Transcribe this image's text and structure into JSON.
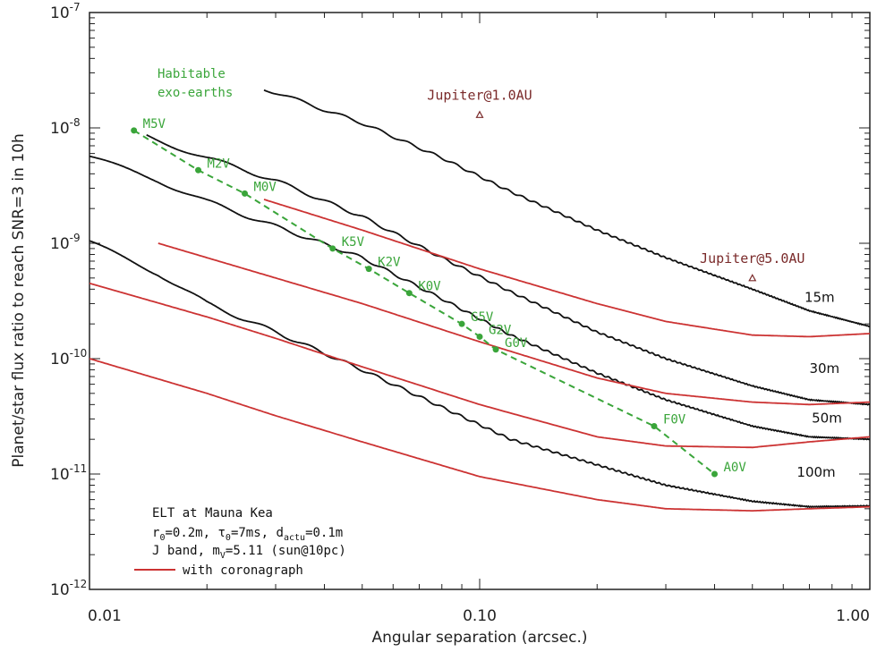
{
  "chart_data": {
    "type": "line",
    "title": "",
    "xlabel": "Angular separation (arcsec.)",
    "ylabel": "Planet/star flux ratio to reach SNR=3 in 10h",
    "xscale": "log",
    "yscale": "log",
    "xlim": [
      0.01,
      1.0
    ],
    "ylim": [
      1e-12,
      1e-07
    ],
    "x_ticks": [
      {
        "value": 0.01,
        "label": "0.01"
      },
      {
        "value": 0.1,
        "label": "0.10"
      },
      {
        "value": 1.0,
        "label": "1.00"
      }
    ],
    "y_ticks": [
      {
        "value": 1e-07,
        "base": "10",
        "exp": "-7"
      },
      {
        "value": 1e-08,
        "base": "10",
        "exp": "-8"
      },
      {
        "value": 1e-09,
        "base": "10",
        "exp": "-9"
      },
      {
        "value": 1e-10,
        "base": "10",
        "exp": "-10"
      },
      {
        "value": 1e-11,
        "base": "10",
        "exp": "-11"
      },
      {
        "value": 1e-12,
        "base": "10",
        "exp": "-12"
      }
    ],
    "series": [
      {
        "name": "15m",
        "kind": "without coronagraph",
        "color": "#111111",
        "x": [
          0.028,
          0.05,
          0.08,
          0.12,
          0.2,
          0.3,
          0.5,
          0.7,
          1.0
        ],
        "y": [
          2.2e-08,
          1.1e-08,
          5.5e-09,
          2.8e-09,
          1.3e-09,
          7.5e-10,
          4e-10,
          2.6e-10,
          1.9e-10
        ]
      },
      {
        "name": "30m",
        "kind": "without coronagraph",
        "color": "#111111",
        "x": [
          0.014,
          0.02,
          0.03,
          0.05,
          0.08,
          0.12,
          0.2,
          0.3,
          0.5,
          0.7,
          1.0
        ],
        "y": [
          8.5e-09,
          5.5e-09,
          3.5e-09,
          1.7e-09,
          7.5e-10,
          3.8e-10,
          1.7e-10,
          1e-10,
          5.8e-11,
          4.4e-11,
          4e-11
        ]
      },
      {
        "name": "50m",
        "kind": "without coronagraph",
        "color": "#111111",
        "x": [
          0.01,
          0.015,
          0.02,
          0.03,
          0.05,
          0.08,
          0.12,
          0.2,
          0.3,
          0.5,
          0.7,
          1.0
        ],
        "y": [
          5.5e-09,
          3.5e-09,
          2.3e-09,
          1.4e-09,
          7.5e-10,
          3.3e-10,
          1.6e-10,
          7.5e-11,
          4.4e-11,
          2.6e-11,
          2.1e-11,
          2e-11
        ]
      },
      {
        "name": "100m",
        "kind": "without coronagraph",
        "color": "#111111",
        "x": [
          0.01,
          0.015,
          0.02,
          0.03,
          0.05,
          0.08,
          0.12,
          0.2,
          0.3,
          0.5,
          0.7,
          1.0
        ],
        "y": [
          1e-09,
          5.5e-10,
          3e-10,
          1.7e-10,
          8e-11,
          3.8e-11,
          2e-11,
          1.2e-11,
          8e-12,
          5.8e-12,
          5.2e-12,
          5.3e-12
        ]
      },
      {
        "name": "15m coronagraph",
        "kind": "with coronagraph",
        "color": "#cc3333",
        "x": [
          0.028,
          0.05,
          0.1,
          0.2,
          0.3,
          0.5,
          0.7,
          1.0
        ],
        "y": [
          2.4e-09,
          1.3e-09,
          6e-10,
          3e-10,
          2.1e-10,
          1.6e-10,
          1.55e-10,
          1.65e-10
        ]
      },
      {
        "name": "30m coronagraph",
        "kind": "with coronagraph",
        "color": "#cc3333",
        "x": [
          0.015,
          0.03,
          0.05,
          0.1,
          0.2,
          0.3,
          0.5,
          0.7,
          1.0
        ],
        "y": [
          1e-09,
          5e-10,
          3e-10,
          1.4e-10,
          6.8e-11,
          5e-11,
          4.2e-11,
          4e-11,
          4.2e-11
        ]
      },
      {
        "name": "50m coronagraph",
        "kind": "with coronagraph",
        "color": "#cc3333",
        "x": [
          0.01,
          0.02,
          0.03,
          0.05,
          0.1,
          0.2,
          0.3,
          0.5,
          0.7,
          1.0
        ],
        "y": [
          4.5e-10,
          2.3e-10,
          1.5e-10,
          8.5e-11,
          4e-11,
          2.1e-11,
          1.75e-11,
          1.7e-11,
          1.9e-11,
          2.1e-11
        ]
      },
      {
        "name": "100m coronagraph",
        "kind": "with coronagraph",
        "color": "#cc3333",
        "x": [
          0.01,
          0.02,
          0.03,
          0.05,
          0.1,
          0.2,
          0.3,
          0.5,
          0.7,
          1.0
        ],
        "y": [
          1e-10,
          5e-11,
          3.2e-11,
          1.9e-11,
          9.5e-12,
          6e-12,
          5e-12,
          4.8e-12,
          5e-12,
          5.2e-12
        ]
      }
    ],
    "habitable_track": {
      "label_line1": "Habitable",
      "label_line2": "exo-earths",
      "color": "#3aa53a",
      "points": [
        {
          "label": "M5V",
          "x": 0.013,
          "y": 9.5e-09
        },
        {
          "label": "M2V",
          "x": 0.019,
          "y": 4.3e-09
        },
        {
          "label": "M0V",
          "x": 0.025,
          "y": 2.7e-09
        },
        {
          "label": "K5V",
          "x": 0.042,
          "y": 9e-10
        },
        {
          "label": "K2V",
          "x": 0.052,
          "y": 6e-10
        },
        {
          "label": "K0V",
          "x": 0.066,
          "y": 3.7e-10
        },
        {
          "label": "G5V",
          "x": 0.09,
          "y": 2e-10
        },
        {
          "label": "G2V",
          "x": 0.1,
          "y": 1.55e-10
        },
        {
          "label": "G0V",
          "x": 0.11,
          "y": 1.2e-10
        },
        {
          "label": "F0V",
          "x": 0.28,
          "y": 2.6e-11
        },
        {
          "label": "A0V",
          "x": 0.4,
          "y": 1e-11
        }
      ]
    },
    "annotations": [
      {
        "label": "Jupiter@1.0AU",
        "x": 0.1,
        "y": 1.3e-08
      },
      {
        "label": "Jupiter@5.0AU",
        "x": 0.5,
        "y": 5e-10
      }
    ],
    "size_labels": [
      {
        "label": "15m",
        "x": 0.68,
        "y": 3.1e-10
      },
      {
        "label": "30m",
        "x": 0.7,
        "y": 7.5e-11
      },
      {
        "label": "50m",
        "x": 0.71,
        "y": 2.8e-11
      },
      {
        "label": "100m",
        "x": 0.65,
        "y": 9.5e-12
      }
    ],
    "info_box": {
      "line1": "ELT at Mauna Kea",
      "line2_parts": {
        "r": "r",
        "r_sub": "0",
        "r_val": "=0.2m, ",
        "tau": "τ",
        "tau_sub": "0",
        "tau_val": "=7ms, ",
        "d": "d",
        "d_sub": "actu",
        "d_val": "=0.1m"
      },
      "line3_parts": {
        "pre": "J band, m",
        "m_sub": "V",
        "post": "=5.11 (sun@10pc)"
      },
      "legend_label": "with coronagraph",
      "legend_color": "#cc3333"
    }
  }
}
